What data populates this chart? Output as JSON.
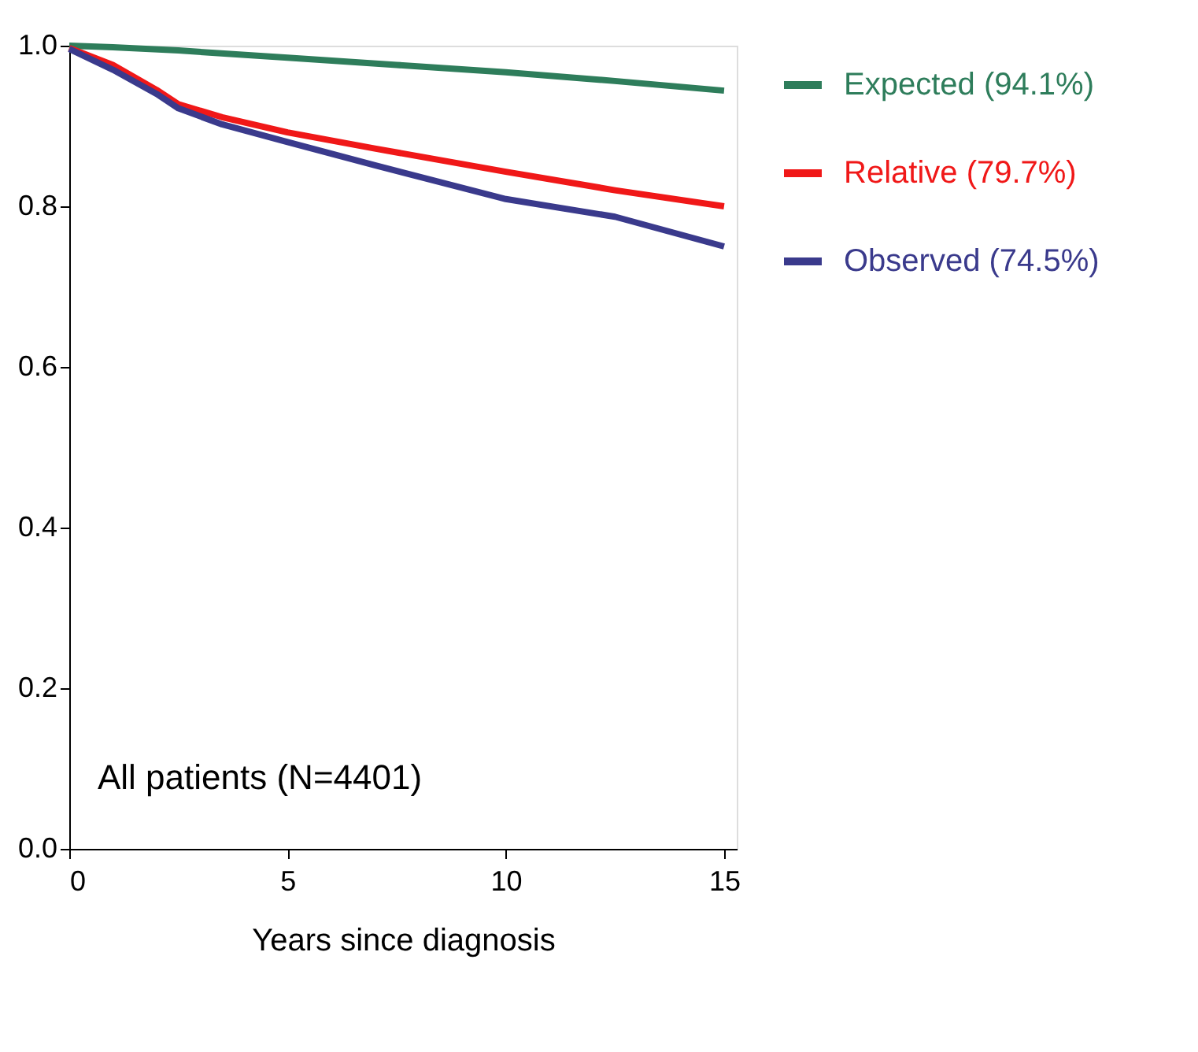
{
  "chart_data": {
    "type": "line",
    "xlabel": "Years since diagnosis",
    "xlim": [
      0,
      15.29
    ],
    "xticks": [
      0,
      5,
      10,
      15
    ],
    "ylim": [
      0,
      1
    ],
    "yticks": [
      {
        "value": 0,
        "label": "0.0"
      },
      0.2,
      0.4,
      0.6,
      0.8,
      {
        "value": 1,
        "label": "1.0"
      }
    ],
    "grid": false,
    "legend": "right",
    "marker": "none",
    "line_style": "solid",
    "series": [
      {
        "name": "Expected (94.1%)",
        "color": "#2e7d5b",
        "x": [
          0,
          1,
          2.5,
          5,
          7.5,
          10,
          12.5,
          15
        ],
        "values": [
          1.0,
          0.998,
          0.994,
          0.985,
          0.976,
          0.967,
          0.956,
          0.944
        ]
      },
      {
        "name": "Relative (79.7%)",
        "color": "#f01818",
        "x": [
          0,
          1,
          2,
          2.5,
          3.5,
          5,
          7,
          10,
          12.5,
          15
        ],
        "values": [
          0.997,
          0.976,
          0.945,
          0.927,
          0.911,
          0.892,
          0.872,
          0.843,
          0.82,
          0.8
        ]
      },
      {
        "name": "Observed (74.5%)",
        "color": "#3a3a8c",
        "x": [
          0,
          1,
          2,
          2.5,
          3.5,
          5,
          7,
          10,
          12.5,
          15
        ],
        "values": [
          0.996,
          0.97,
          0.94,
          0.922,
          0.902,
          0.88,
          0.851,
          0.809,
          0.787,
          0.75
        ]
      }
    ],
    "annotations": [
      "All patients (N=4401)"
    ]
  }
}
